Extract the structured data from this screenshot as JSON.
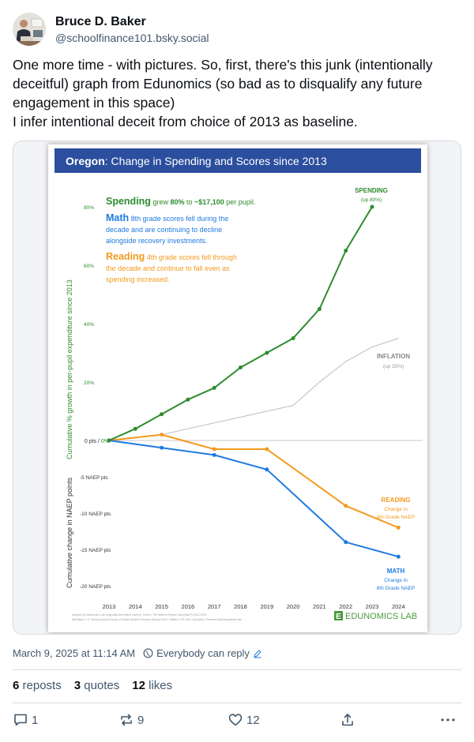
{
  "author": {
    "display_name": "Bruce D. Baker",
    "handle": "@schoolfinance101.bsky.social",
    "avatar_icon": "avatar-photo"
  },
  "post": {
    "text": "One more time - with pictures. So, first, there's this junk (intentionally deceitful) graph from Edunomics (so bad as to disqualify any future engagement in this space)\nI infer intentional deceit from choice of 2013 as baseline.",
    "timestamp": "March 9, 2025 at 11:14 AM",
    "reply_setting": "Everybody can reply"
  },
  "stats": {
    "reposts_count": "6",
    "reposts_label": "reposts",
    "quotes_count": "3",
    "quotes_label": "quotes",
    "likes_count": "12",
    "likes_label": "likes"
  },
  "actions": {
    "reply_count": "1",
    "repost_count": "9",
    "like_count": "12"
  },
  "colors": {
    "spending": "#2e8b2e",
    "math": "#1f7ae0",
    "reading": "#f39a1e",
    "inflation": "#bdbdbd",
    "title_bar": "#2b4f9e"
  },
  "chart_data": {
    "type": "line",
    "title_bold": "Oregon",
    "title_rest": ": Change in Spending and Scores since 2013",
    "x": [
      2013,
      2014,
      2015,
      2016,
      2017,
      2018,
      2019,
      2020,
      2021,
      2022,
      2023,
      2024
    ],
    "x_tick_labels": [
      "2013",
      "2014",
      "2015",
      "2016",
      "2017",
      "2018",
      "2019",
      "2020",
      "2021",
      "2022",
      "2023",
      "2024"
    ],
    "ylabel_top": "Cumulative % growth in per-pupil expenditure since 2013",
    "ylabel_bottom": "Cumulative change in NAEP points",
    "y_top_ticks": [
      "20%",
      "40%",
      "60%",
      "80%"
    ],
    "y_top_values": [
      20,
      40,
      60,
      80
    ],
    "y_top_range": [
      0,
      85
    ],
    "zero_label_a": "0 pts / ",
    "zero_label_b": "0%",
    "y_bottom_ticks": [
      "-5 NAEP pts",
      "-10 NAEP pts",
      "-15 NAEP pts",
      "-20 NAEP pts"
    ],
    "y_bottom_values": [
      -5,
      -10,
      -15,
      -20
    ],
    "y_bottom_range": [
      -20,
      0
    ],
    "series": [
      {
        "name": "Spending",
        "axis": "top",
        "x": [
          2013,
          2014,
          2015,
          2016,
          2017,
          2018,
          2019,
          2020,
          2021,
          2022,
          2023
        ],
        "values": [
          0,
          4,
          9,
          14,
          18,
          25,
          30,
          35,
          45,
          65,
          80
        ],
        "markers": true
      },
      {
        "name": "Inflation",
        "axis": "top",
        "x": [
          2013,
          2015,
          2017,
          2019,
          2020,
          2021,
          2022,
          2023,
          2024
        ],
        "values": [
          0,
          2,
          6,
          10,
          12,
          20,
          27,
          32,
          35
        ],
        "markers": false
      },
      {
        "name": "Reading",
        "axis": "bottom",
        "x": [
          2013,
          2015,
          2017,
          2019,
          2022,
          2024
        ],
        "values": [
          0,
          0.8,
          -1.2,
          -1.2,
          -9,
          -12
        ],
        "markers": true
      },
      {
        "name": "Math",
        "axis": "bottom",
        "x": [
          2013,
          2015,
          2017,
          2019,
          2022,
          2024
        ],
        "values": [
          0,
          -1,
          -2,
          -4,
          -14,
          -16
        ],
        "markers": true
      }
    ],
    "annotations": {
      "spending_head": "Spending",
      "spending_body_a": " grew ",
      "spending_body_b": "80%",
      "spending_body_c": " to ",
      "spending_body_d": "~$17,100",
      "spending_body_e": " per pupil.",
      "math_head": "Math",
      "math_line1": " 8th grade scores fell during the",
      "math_line2": "decade and are continuing to decline",
      "math_line3": "alongside recovery investments.",
      "reading_head": "Reading",
      "reading_line1": " 4th grade scores fell through",
      "reading_line2": "the decade and continue to fall even as",
      "reading_line3": "spending increased."
    },
    "series_labels": {
      "spending_title": "SPENDING",
      "spending_sub": "(up 80%)",
      "inflation_title": "INFLATION",
      "inflation_sub": "(up 35%)",
      "reading_title": "READING",
      "reading_sub1": "Change in",
      "reading_sub2": "4th Grade NAEP",
      "math_title": "MATH",
      "math_sub1": "Change in",
      "math_sub2": "8th Grade NAEP"
    },
    "source_line1": "Analysis by Edunomics Lab using data from these sources: Scores: The Nation's Report Card (NAEP) 2013-2024.",
    "source_line2": "Spending: U.S. Census Annual Survey of School System Finances through 2023. Inflation: CPI, BLS. Questions: Edunomics@Georgetown.edu",
    "logo_letter": "E",
    "logo_text": "EDUNOMICS LAB",
    "legend": "inline-right",
    "grid": false
  }
}
